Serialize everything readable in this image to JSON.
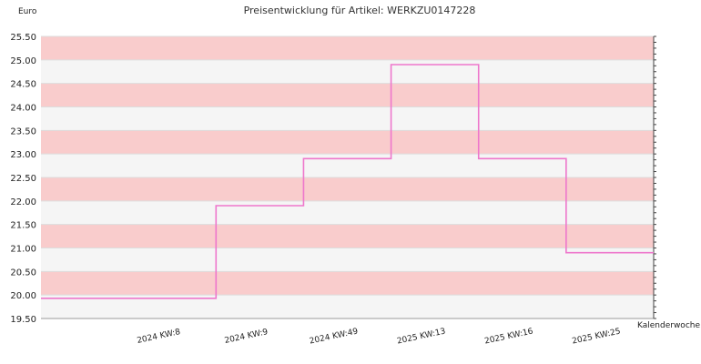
{
  "chart_data": {
    "type": "line",
    "step": true,
    "title": "Preisentwicklung für Artikel: WERKZU0147228",
    "ylabel": "Euro",
    "xlabel": "Kalenderwoche",
    "ylim": [
      19.5,
      25.5
    ],
    "ytick_labels": [
      "19.50",
      "20.00",
      "20.50",
      "21.00",
      "21.50",
      "22.00",
      "22.50",
      "23.00",
      "23.50",
      "24.00",
      "24.50",
      "25.00",
      "25.50"
    ],
    "categories": [
      "2024 KW:8",
      "2024 KW:9",
      "2024 KW:49",
      "2025 KW:13",
      "2025 KW:16",
      "2025 KW:25"
    ],
    "series": [
      {
        "values": [
          19.93,
          21.9,
          22.9,
          24.9,
          22.9,
          20.9
        ]
      }
    ],
    "grid": true,
    "colors": {
      "band_pink": "#f9cccc",
      "band_light": "#f5f5f5",
      "line": "#ee77cc",
      "gridline": "#dddddd"
    }
  }
}
